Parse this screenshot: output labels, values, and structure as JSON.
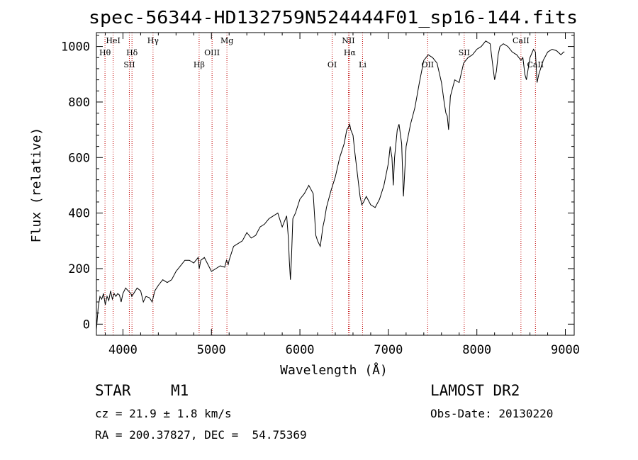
{
  "chart_data": {
    "type": "line",
    "title": "spec-56344-HD132759N524444F01_sp16-144.fits",
    "xlabel": "Wavelength (Å)",
    "ylabel": "Flux (relative)",
    "xlim": [
      3700,
      9100
    ],
    "ylim": [
      -40,
      1050
    ],
    "xticks": [
      4000,
      5000,
      6000,
      7000,
      8000,
      9000
    ],
    "yticks": [
      0,
      200,
      400,
      600,
      800,
      1000
    ],
    "grid": false,
    "series": [
      {
        "x": [
          3700,
          3720,
          3740,
          3760,
          3780,
          3800,
          3820,
          3840,
          3860,
          3880,
          3900,
          3920,
          3940,
          3960,
          3980,
          4000,
          4030,
          4060,
          4090,
          4100,
          4130,
          4160,
          4200,
          4230,
          4260,
          4300,
          4330,
          4360,
          4400,
          4450,
          4500,
          4550,
          4600,
          4650,
          4700,
          4750,
          4800,
          4850,
          4862,
          4880,
          4920,
          4960,
          5000,
          5050,
          5100,
          5150,
          5170,
          5190,
          5200,
          5250,
          5300,
          5350,
          5400,
          5450,
          5500,
          5550,
          5600,
          5650,
          5700,
          5750,
          5800,
          5850,
          5870,
          5880,
          5893,
          5905,
          5920,
          5950,
          6000,
          6050,
          6100,
          6150,
          6180,
          6200,
          6230,
          6260,
          6280,
          6300,
          6350,
          6400,
          6450,
          6500,
          6530,
          6550,
          6563,
          6575,
          6600,
          6620,
          6650,
          6680,
          6700,
          6720,
          6750,
          6800,
          6850,
          6900,
          6950,
          7000,
          7020,
          7040,
          7055,
          7070,
          7100,
          7120,
          7150,
          7170,
          7200,
          7250,
          7300,
          7350,
          7400,
          7450,
          7500,
          7550,
          7600,
          7630,
          7650,
          7665,
          7680,
          7700,
          7750,
          7800,
          7850,
          7900,
          7950,
          8000,
          8050,
          8100,
          8150,
          8180,
          8200,
          8220,
          8240,
          8260,
          8300,
          8350,
          8400,
          8450,
          8498,
          8520,
          8542,
          8560,
          8600,
          8640,
          8662,
          8680,
          8700,
          8750,
          8800,
          8850,
          8900,
          8950,
          8980,
          8990
        ],
        "y": [
          -20,
          60,
          100,
          90,
          110,
          70,
          100,
          85,
          120,
          90,
          110,
          100,
          110,
          105,
          80,
          110,
          130,
          120,
          110,
          100,
          115,
          130,
          120,
          80,
          100,
          95,
          80,
          120,
          140,
          160,
          150,
          160,
          190,
          210,
          230,
          230,
          220,
          240,
          200,
          230,
          240,
          215,
          190,
          200,
          210,
          205,
          230,
          215,
          230,
          280,
          290,
          300,
          330,
          310,
          320,
          350,
          360,
          380,
          390,
          400,
          350,
          390,
          310,
          230,
          160,
          240,
          380,
          400,
          450,
          470,
          500,
          470,
          320,
          300,
          280,
          350,
          380,
          420,
          480,
          530,
          600,
          650,
          700,
          710,
          720,
          700,
          680,
          620,
          540,
          460,
          430,
          440,
          460,
          430,
          420,
          450,
          500,
          580,
          640,
          600,
          500,
          600,
          700,
          720,
          650,
          460,
          640,
          720,
          780,
          870,
          950,
          970,
          960,
          940,
          870,
          800,
          760,
          750,
          700,
          820,
          880,
          870,
          940,
          960,
          970,
          990,
          1000,
          1020,
          1010,
          930,
          880,
          910,
          970,
          1000,
          1010,
          1000,
          980,
          970,
          950,
          960,
          900,
          880,
          960,
          990,
          980,
          870,
          900,
          950,
          980,
          990,
          985,
          970,
          980,
          980
        ]
      }
    ],
    "lines": [
      {
        "label": "Hθ",
        "x": 3797
      },
      {
        "label": "HeI",
        "x": 3889
      },
      {
        "label": "SII",
        "x": 4072
      },
      {
        "label": "Hδ",
        "x": 4102
      },
      {
        "label": "Hγ",
        "x": 4340
      },
      {
        "label": "Hβ",
        "x": 4861
      },
      {
        "label": "OIII",
        "x": 5007
      },
      {
        "label": "Mg",
        "x": 5175
      },
      {
        "label": "OI",
        "x": 6364
      },
      {
        "label": "NII",
        "x": 6548
      },
      {
        "label": "Hα",
        "x": 6563
      },
      {
        "label": "Li",
        "x": 6708
      },
      {
        "label": "OII",
        "x": 7444
      },
      {
        "label": "SII",
        "x": 7857
      },
      {
        "label": "CaII",
        "x": 8498
      },
      {
        "label": "CaII",
        "x": 8662
      }
    ],
    "line_color": "#c00000"
  },
  "info": {
    "class": "STAR",
    "subclass": "M1",
    "survey": "LAMOST DR2",
    "cz": "cz = 21.9 ± 1.8 km/s",
    "obsdate": "Obs-Date: 20130220",
    "radec": "RA = 200.37827, DEC =  54.75369"
  }
}
